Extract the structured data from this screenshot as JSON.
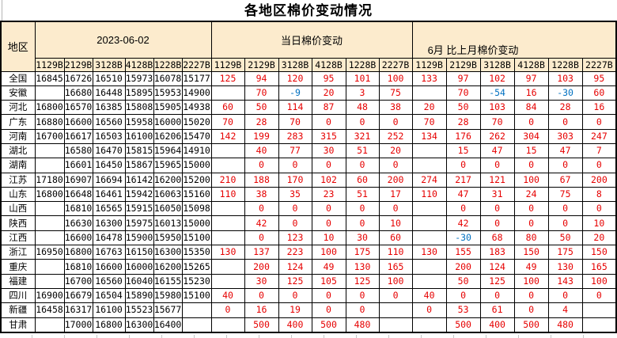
{
  "title": "各地区棉价变动情况",
  "colors": {
    "header_bg": "#fcebcd",
    "value": "#000000",
    "increase": "#e60000",
    "decrease": "#0070c0",
    "grid": "#000000"
  },
  "table": {
    "region_header": "地区",
    "groups": [
      {
        "label": "2023-06-02"
      },
      {
        "label": "当日棉价变动"
      },
      {
        "label": "6月 比上月棉价变动"
      }
    ],
    "columns": [
      "1129B",
      "2129B",
      "3128B",
      "4128B",
      "1228B",
      "2227B"
    ],
    "rows": [
      {
        "region": "全国",
        "prices": [
          "16845",
          "16726",
          "16510",
          "15973",
          "16078",
          "15177"
        ],
        "daily": [
          "125",
          "94",
          "120",
          "95",
          "101",
          "100"
        ],
        "monthly": [
          "133",
          "97",
          "102",
          "97",
          "103",
          "95"
        ]
      },
      {
        "region": "安徽",
        "prices": [
          "",
          "16680",
          "16448",
          "15895",
          "15953",
          "14900"
        ],
        "daily": [
          "",
          "70",
          "-9",
          "20",
          "3",
          "75"
        ],
        "monthly": [
          "",
          "70",
          "-54",
          "16",
          "-30",
          "60"
        ]
      },
      {
        "region": "河北",
        "prices": [
          "16800",
          "16570",
          "16385",
          "15808",
          "15905",
          "14938"
        ],
        "daily": [
          "60",
          "50",
          "114",
          "87",
          "48",
          "38"
        ],
        "monthly": [
          "20",
          "50",
          "103",
          "84",
          "28",
          "16"
        ]
      },
      {
        "region": "广东",
        "prices": [
          "16880",
          "16600",
          "16560",
          "15958",
          "16000",
          "15020"
        ],
        "daily": [
          "70",
          "28",
          "70",
          "0",
          "0",
          "0"
        ],
        "monthly": [
          "70",
          "28",
          "70",
          "0",
          "0",
          "0"
        ]
      },
      {
        "region": "河南",
        "prices": [
          "16700",
          "16617",
          "16503",
          "16100",
          "16206",
          "15470"
        ],
        "daily": [
          "142",
          "199",
          "283",
          "315",
          "321",
          "252"
        ],
        "monthly": [
          "134",
          "176",
          "262",
          "304",
          "303",
          "247"
        ]
      },
      {
        "region": "湖北",
        "prices": [
          "",
          "16580",
          "16470",
          "15815",
          "15964",
          "14910"
        ],
        "daily": [
          "",
          "40",
          "77",
          "30",
          "51",
          "20"
        ],
        "monthly": [
          "",
          "15",
          "47",
          "15",
          "47",
          "7"
        ]
      },
      {
        "region": "湖南",
        "prices": [
          "",
          "16601",
          "16450",
          "15867",
          "15965",
          "15000"
        ],
        "daily": [
          "",
          "0",
          "0",
          "0",
          "0",
          "0"
        ],
        "monthly": [
          "",
          "0",
          "0",
          "0",
          "0",
          "0"
        ]
      },
      {
        "region": "江苏",
        "prices": [
          "17180",
          "16907",
          "16694",
          "16142",
          "16200",
          "15200"
        ],
        "daily": [
          "210",
          "188",
          "170",
          "102",
          "60",
          "200"
        ],
        "monthly": [
          "274",
          "217",
          "121",
          "100",
          "67",
          "200"
        ]
      },
      {
        "region": "山东",
        "prices": [
          "16800",
          "16648",
          "16461",
          "15942",
          "16063",
          "15160"
        ],
        "daily": [
          "110",
          "38",
          "35",
          "23",
          "51",
          "17"
        ],
        "monthly": [
          "110",
          "47",
          "31",
          "24",
          "75",
          "8"
        ]
      },
      {
        "region": "山西",
        "prices": [
          "",
          "16810",
          "16565",
          "15915",
          "16050",
          "15098"
        ],
        "daily": [
          "",
          "0",
          "0",
          "0",
          "0",
          "0"
        ],
        "monthly": [
          "",
          "0",
          "0",
          "0",
          "0",
          "0"
        ]
      },
      {
        "region": "陕西",
        "prices": [
          "",
          "16630",
          "16300",
          "15975",
          "16013",
          "15000"
        ],
        "daily": [
          "",
          "42",
          "0",
          "0",
          "0",
          "10"
        ],
        "monthly": [
          "",
          "42",
          "0",
          "0",
          "0",
          "10"
        ]
      },
      {
        "region": "江西",
        "prices": [
          "",
          "16600",
          "16478",
          "15900",
          "15950",
          "15100"
        ],
        "daily": [
          "",
          "0",
          "123",
          "10",
          "30",
          "60"
        ],
        "monthly": [
          "",
          "-30",
          "68",
          "80",
          "50",
          "20"
        ]
      },
      {
        "region": "浙江",
        "prices": [
          "16950",
          "16800",
          "16763",
          "16150",
          "16300",
          "15350"
        ],
        "daily": [
          "130",
          "137",
          "223",
          "100",
          "175",
          "110"
        ],
        "monthly": [
          "130",
          "155",
          "183",
          "150",
          "175",
          "150"
        ]
      },
      {
        "region": "重庆",
        "prices": [
          "",
          "16810",
          "16600",
          "16000",
          "16200",
          "15265"
        ],
        "daily": [
          "",
          "200",
          "124",
          "49",
          "130",
          "165"
        ],
        "monthly": [
          "",
          "200",
          "124",
          "49",
          "130",
          "165"
        ]
      },
      {
        "region": "福建",
        "prices": [
          "",
          "16700",
          "16560",
          "16040",
          "16155",
          "15230"
        ],
        "daily": [
          "",
          "30",
          "125",
          "105",
          "125",
          "100"
        ],
        "monthly": [
          "",
          "50",
          "125",
          "100",
          "143",
          "100"
        ]
      },
      {
        "region": "四川",
        "prices": [
          "16900",
          "16679",
          "16504",
          "15890",
          "15980",
          "15100"
        ],
        "daily": [
          "40",
          "0",
          "0",
          "0",
          "0",
          "0"
        ],
        "monthly": [
          "40",
          "0",
          "0",
          "0",
          "0",
          "0"
        ]
      },
      {
        "region": "新疆",
        "prices": [
          "16458",
          "16317",
          "16100",
          "15523",
          "15677",
          ""
        ],
        "daily": [
          "0",
          "16",
          "19",
          "0",
          "0",
          ""
        ],
        "monthly": [
          "0",
          "53",
          "61",
          "0",
          "4",
          ""
        ]
      },
      {
        "region": "甘肃",
        "prices": [
          "",
          "17000",
          "16800",
          "16300",
          "16400",
          ""
        ],
        "daily": [
          "",
          "500",
          "400",
          "500",
          "480",
          ""
        ],
        "monthly": [
          "",
          "500",
          "400",
          "500",
          "480",
          ""
        ]
      }
    ]
  }
}
